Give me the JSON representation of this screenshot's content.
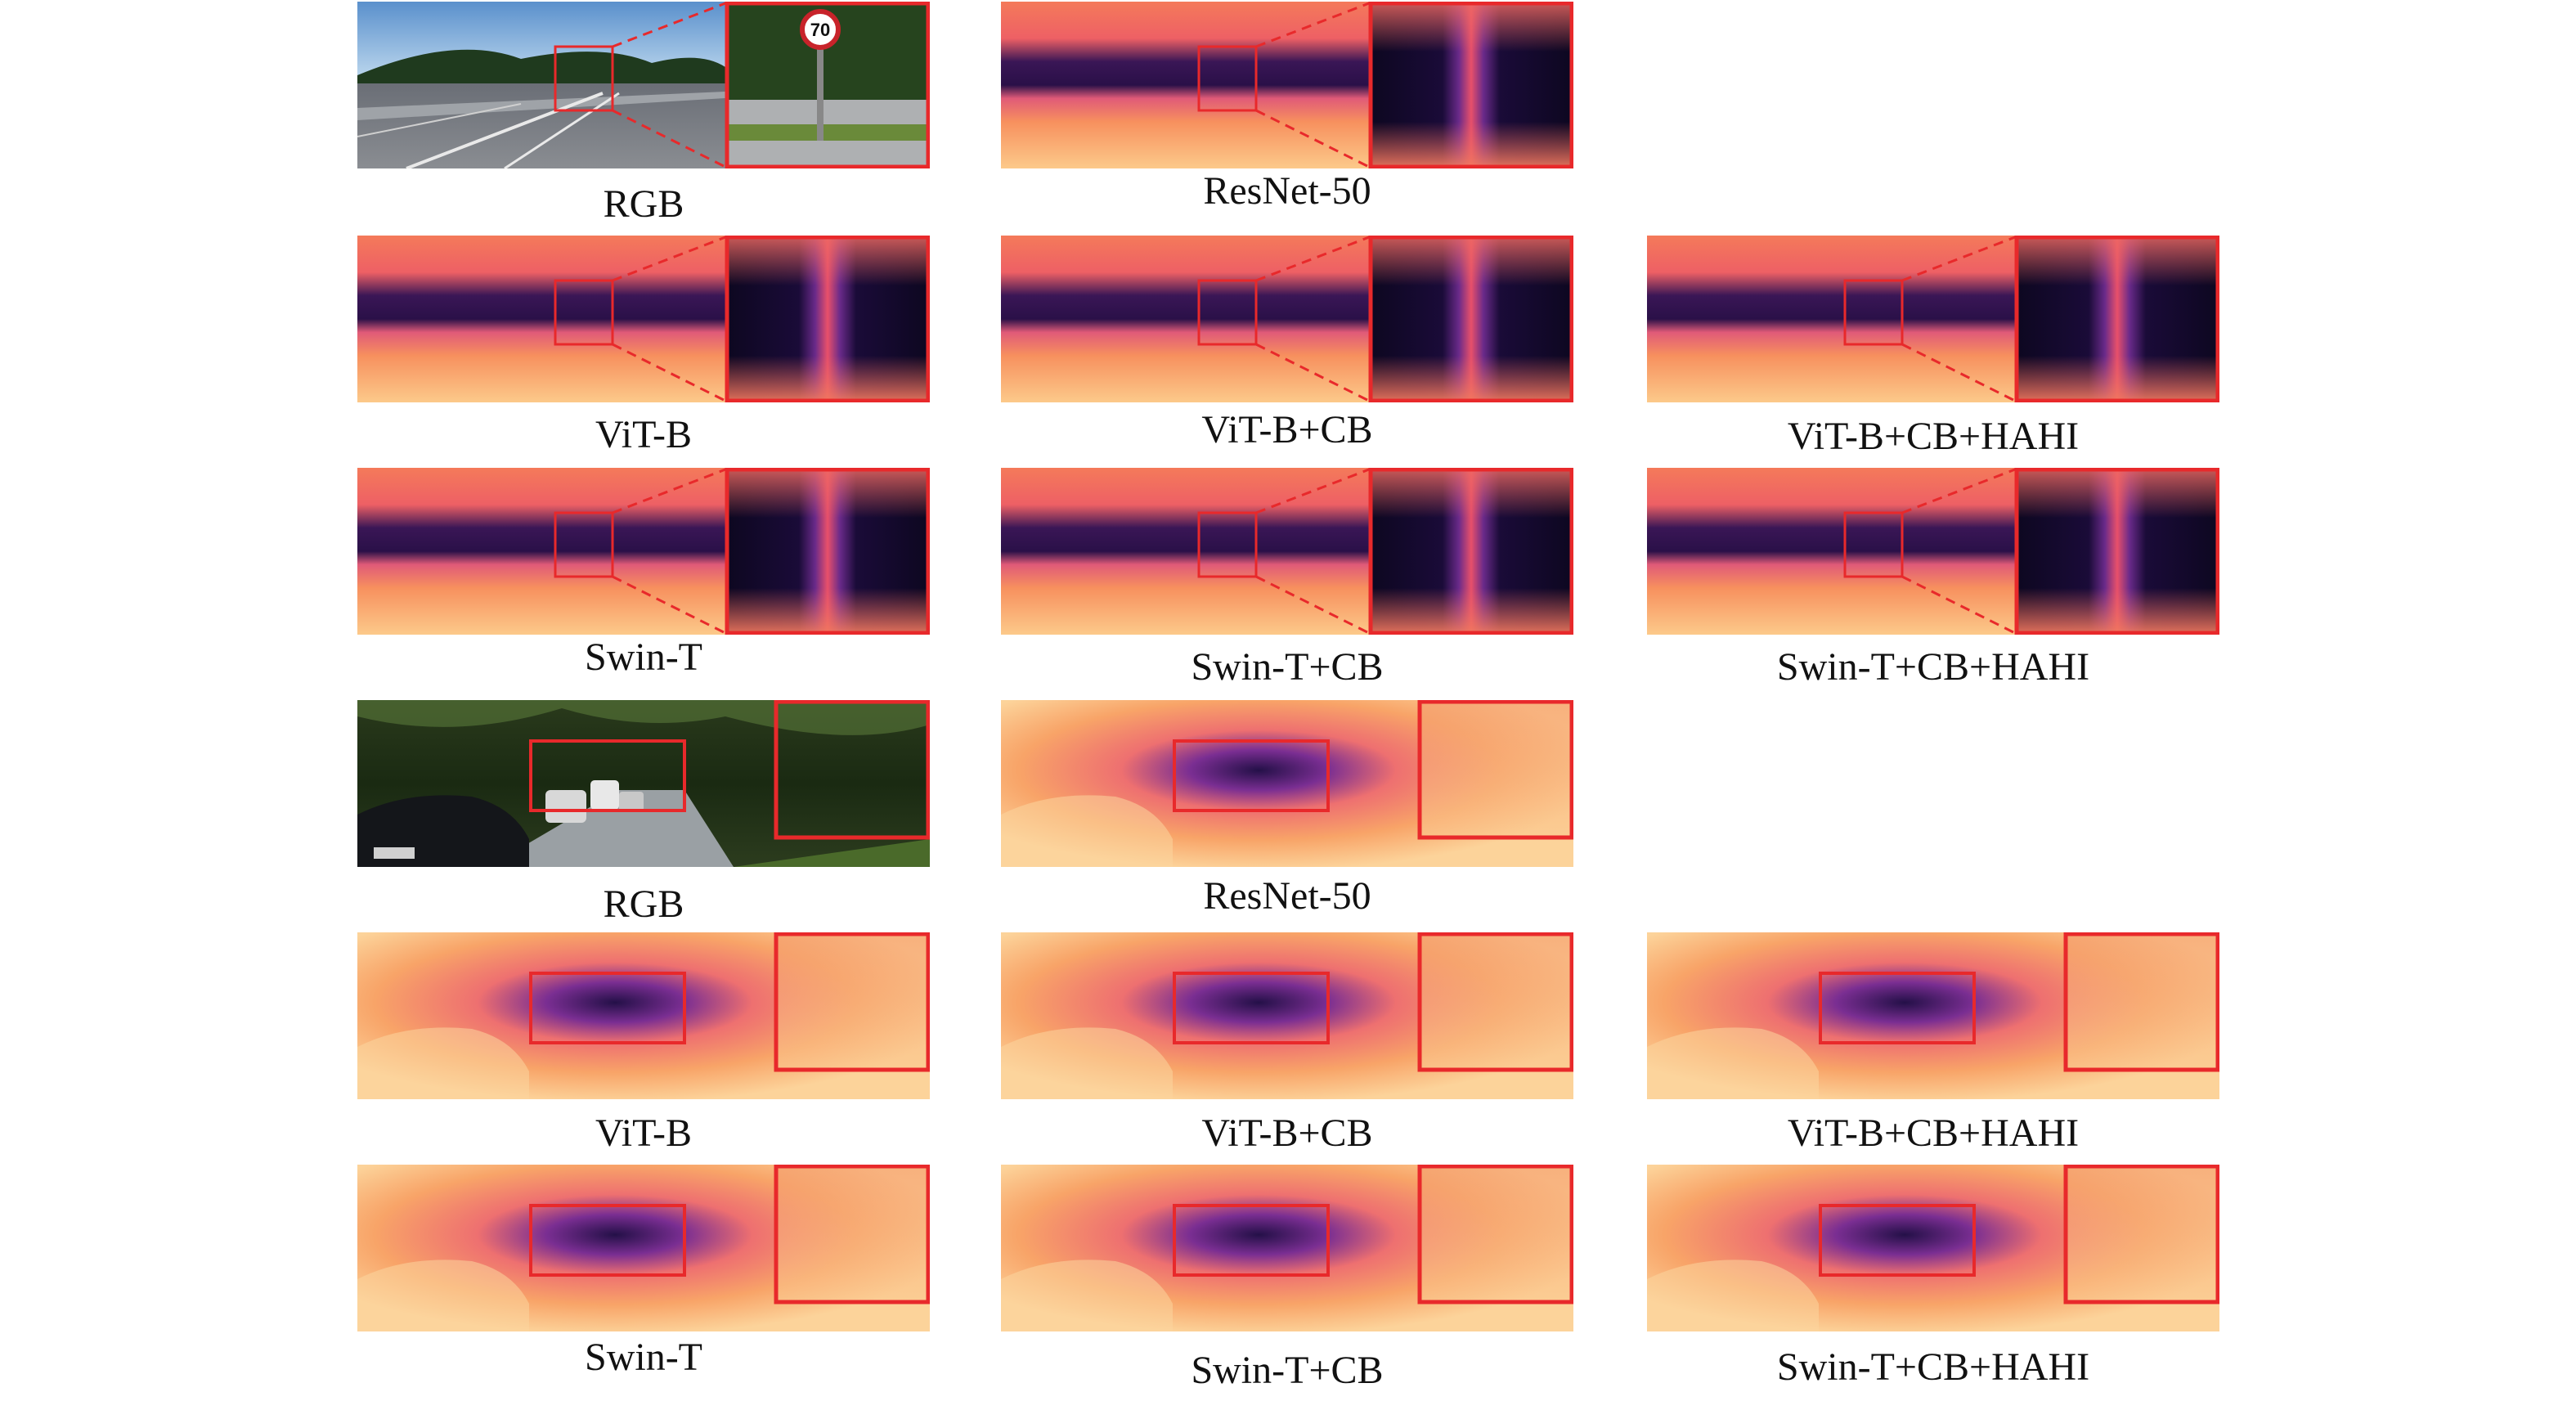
{
  "figure": {
    "panels": [
      {
        "id": "a-rgb",
        "caption": "RGB"
      },
      {
        "id": "a-resnet50",
        "caption": "ResNet-50"
      },
      {
        "id": "a-vitb",
        "caption": "ViT-B"
      },
      {
        "id": "a-vitb-cb",
        "caption": "ViT-B+CB"
      },
      {
        "id": "a-vitb-cb-hahi",
        "caption": "ViT-B+CB+HAHI"
      },
      {
        "id": "a-swint",
        "caption": "Swin-T"
      },
      {
        "id": "a-swint-cb",
        "caption": "Swin-T+CB"
      },
      {
        "id": "a-swint-cb-hahi",
        "caption": "Swin-T+CB+HAHI"
      },
      {
        "id": "b-rgb",
        "caption": "RGB"
      },
      {
        "id": "b-resnet50",
        "caption": "ResNet-50"
      },
      {
        "id": "b-vitb",
        "caption": "ViT-B"
      },
      {
        "id": "b-vitb-cb",
        "caption": "ViT-B+CB"
      },
      {
        "id": "b-vitb-cb-hahi",
        "caption": "ViT-B+CB+HAHI"
      },
      {
        "id": "b-swint",
        "caption": "Swin-T"
      },
      {
        "id": "b-swint-cb",
        "caption": "Swin-T+CB"
      },
      {
        "id": "b-swint-cb-hahi",
        "caption": "Swin-T+CB+HAHI"
      }
    ],
    "colors": {
      "highlight_box": "#e8292b",
      "depth_near": "#fbd6a0",
      "depth_mid": "#f06a5a",
      "depth_far": "#0b0620"
    }
  }
}
